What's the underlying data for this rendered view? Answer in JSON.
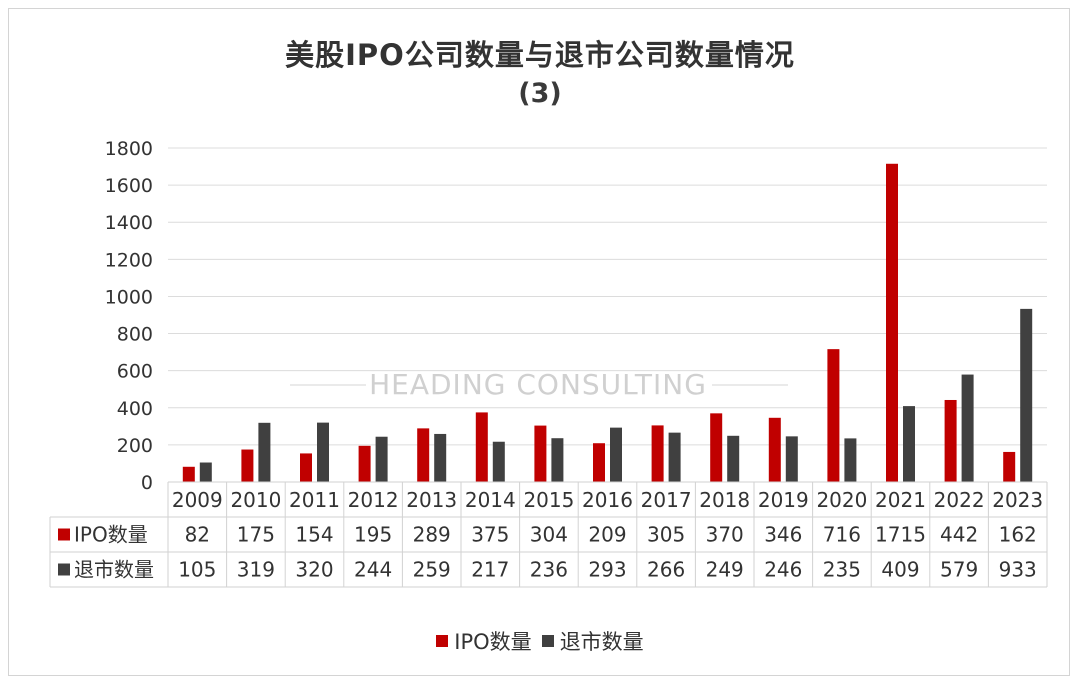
{
  "chart_data": {
    "type": "bar",
    "title": "美股IPO公司数量与退市公司数量情况",
    "subtitle": "(3)",
    "watermark": "HEADING CONSULTING",
    "categories": [
      "2009",
      "2010",
      "2011",
      "2012",
      "2013",
      "2014",
      "2015",
      "2016",
      "2017",
      "2018",
      "2019",
      "2020",
      "2021",
      "2022",
      "2023"
    ],
    "series": [
      {
        "name": "IPO数量",
        "color": "#c00000",
        "values": [
          82,
          175,
          154,
          195,
          289,
          375,
          304,
          209,
          305,
          370,
          346,
          716,
          1715,
          442,
          162
        ]
      },
      {
        "name": "退市数量",
        "color": "#404040",
        "values": [
          105,
          319,
          320,
          244,
          259,
          217,
          236,
          293,
          266,
          249,
          246,
          235,
          409,
          579,
          933
        ]
      }
    ],
    "ylim": [
      0,
      1800
    ],
    "yticks": [
      0,
      200,
      400,
      600,
      800,
      1000,
      1200,
      1400,
      1600,
      1800
    ],
    "grid": true,
    "legend_position": "bottom",
    "data_table": true
  }
}
